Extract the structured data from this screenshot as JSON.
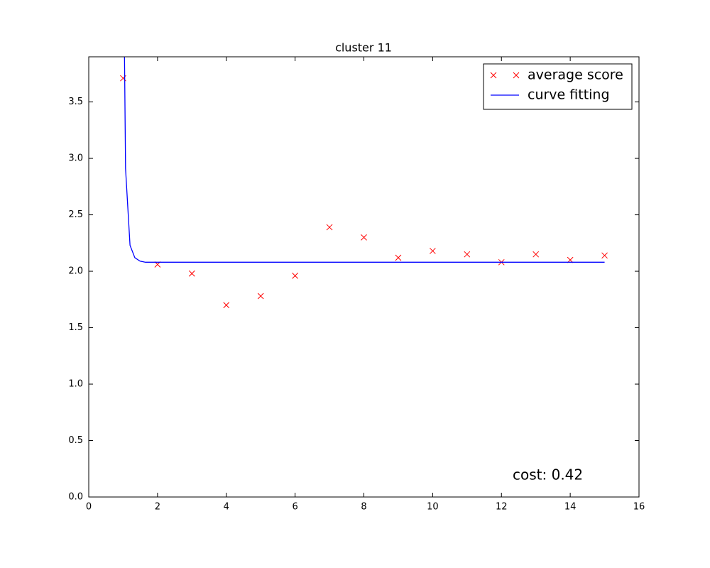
{
  "chart_data": {
    "type": "scatter-line",
    "title": "cluster 11",
    "annotation": "cost: 0.42",
    "xlim": [
      0,
      16
    ],
    "xticks": [
      0,
      2,
      4,
      6,
      8,
      10,
      12,
      14,
      16
    ],
    "ylim": [
      0,
      3.9
    ],
    "yticks": [
      {
        "value": 0,
        "label": "0.0"
      },
      0.5,
      {
        "value": 1,
        "label": "1.0"
      },
      1.5,
      {
        "value": 2,
        "label": "2.0"
      },
      2.5,
      {
        "value": 3,
        "label": "3.0"
      },
      3.5
    ],
    "legend": "upper right",
    "series": [
      {
        "name": "average score",
        "kind": "scatter",
        "color": "#ff0000",
        "x": [
          1,
          2,
          3,
          4,
          5,
          6,
          7,
          8,
          9,
          10,
          11,
          12,
          13,
          14,
          15
        ],
        "values": [
          3.71,
          2.06,
          1.98,
          1.7,
          1.78,
          1.96,
          2.39,
          2.3,
          2.12,
          2.18,
          2.15,
          2.08,
          2.15,
          2.1,
          2.14
        ]
      },
      {
        "name": "curve fitting",
        "kind": "line",
        "color": "#0000ff",
        "x": [
          1.0,
          1.07,
          1.2,
          1.34,
          1.49,
          1.65,
          2,
          3,
          4,
          5,
          6,
          7,
          8,
          9,
          10,
          11,
          12,
          13,
          14,
          15
        ],
        "values": [
          5.2,
          2.91,
          2.23,
          2.12,
          2.09,
          2.08,
          2.08,
          2.08,
          2.08,
          2.08,
          2.08,
          2.08,
          2.08,
          2.08,
          2.08,
          2.08,
          2.08,
          2.08,
          2.08,
          2.08
        ]
      }
    ]
  }
}
